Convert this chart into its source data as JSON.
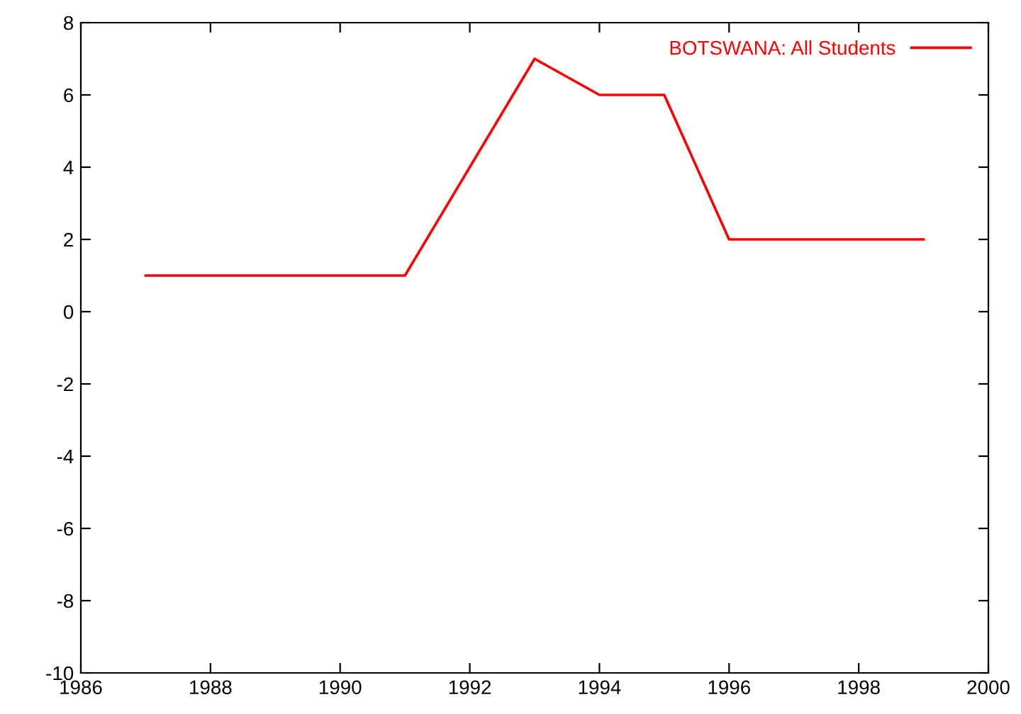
{
  "chart_data": {
    "type": "line",
    "x": [
      1987,
      1988,
      1989,
      1990,
      1991,
      1992,
      1993,
      1994,
      1995,
      1996,
      1997,
      1998,
      1999
    ],
    "series": [
      {
        "name": "BOTSWANA: All Students",
        "color": "#ff0000",
        "values": [
          1,
          1,
          1,
          1,
          1,
          4,
          7,
          6,
          6,
          2,
          2,
          2,
          2
        ]
      }
    ],
    "xlim": [
      1986,
      2000
    ],
    "xticks": [
      1986,
      1988,
      1990,
      1992,
      1994,
      1996,
      1998,
      2000
    ],
    "ylim": [
      -10,
      8
    ],
    "yticks": [
      -10,
      -8,
      -6,
      -4,
      -2,
      0,
      2,
      4,
      6,
      8
    ],
    "grid": false,
    "legend": "top right",
    "marker": "none",
    "line_style": "solid"
  }
}
